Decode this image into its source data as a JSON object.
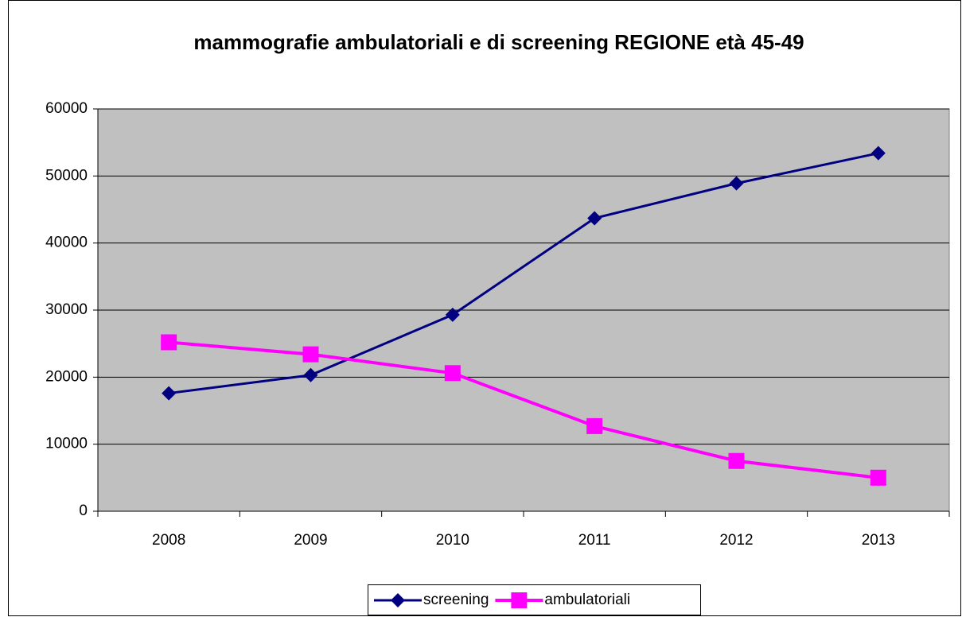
{
  "chart_data": {
    "type": "line",
    "title": "mammografie ambulatoriali e di screening REGIONE età 45-49",
    "categories": [
      "2008",
      "2009",
      "2010",
      "2011",
      "2012",
      "2013"
    ],
    "series": [
      {
        "name": "screening",
        "color": "#000080",
        "marker": "diamond",
        "values": [
          17600,
          20300,
          29300,
          43700,
          48900,
          53400
        ]
      },
      {
        "name": "ambulatoriali",
        "color": "#ff00ff",
        "marker": "square",
        "values": [
          25200,
          23400,
          20600,
          12700,
          7500,
          5000
        ]
      }
    ],
    "ylim": [
      0,
      60000
    ],
    "yticks": [
      0,
      10000,
      20000,
      30000,
      40000,
      50000,
      60000
    ],
    "grid": true,
    "legend": "bottom"
  }
}
